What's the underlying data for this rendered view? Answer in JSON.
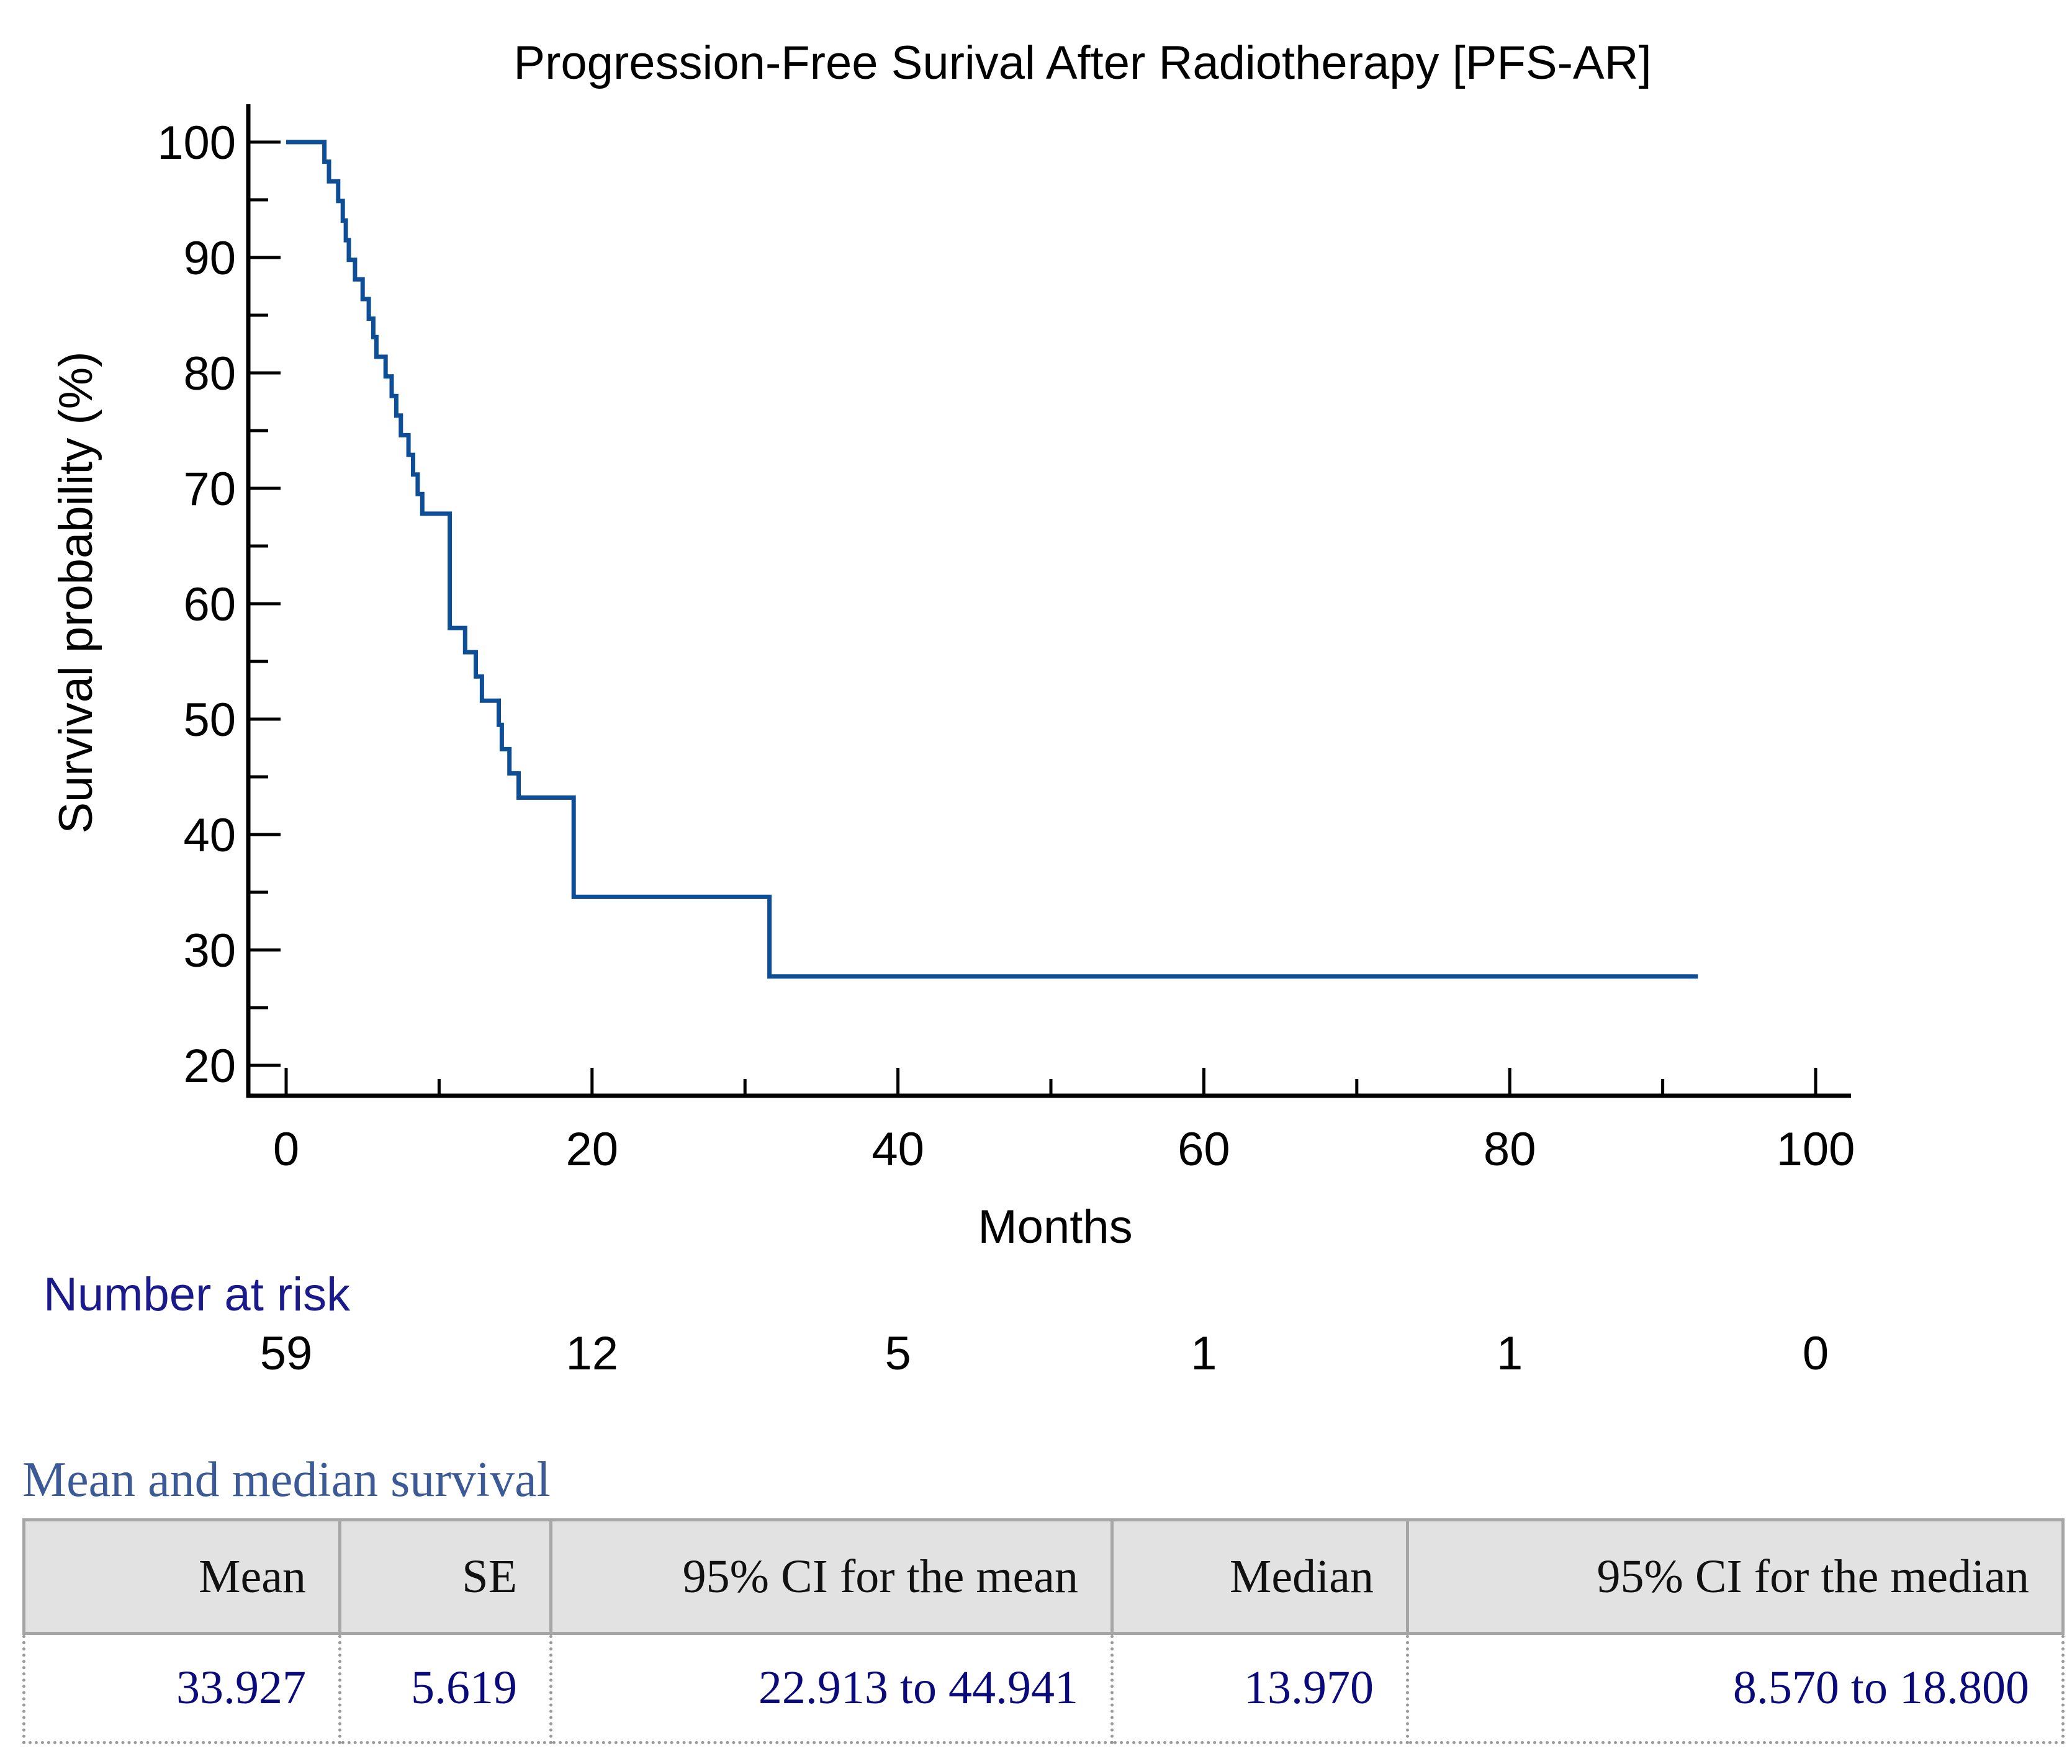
{
  "chart_data": {
    "type": "line",
    "title": "Progression-Free Surival After Radiotherapy [PFS-AR]",
    "xlabel": "Months",
    "ylabel": "Survival probability (%)",
    "xlim": [
      0,
      100
    ],
    "ylim": [
      20,
      100
    ],
    "x_ticks": [
      0,
      20,
      40,
      60,
      80,
      100
    ],
    "x_tick_labels": [
      "0",
      "20",
      "40",
      "60",
      "80",
      "100"
    ],
    "y_ticks": [
      20,
      30,
      40,
      50,
      60,
      70,
      80,
      90,
      100
    ],
    "y_tick_labels": [
      "20",
      "30",
      "40",
      "50",
      "60",
      "70",
      "80",
      "90",
      "100"
    ],
    "series": [
      {
        "name": "PFS-AR",
        "color": "#0d4e96",
        "step": true,
        "x": [
          0,
          2.5,
          2.8,
          3.4,
          3.7,
          3.9,
          4.1,
          4.5,
          5.0,
          5.4,
          5.7,
          5.9,
          6.5,
          6.9,
          7.2,
          7.5,
          8.0,
          8.3,
          8.6,
          8.9,
          10.7,
          11.7,
          12.4,
          12.8,
          13.9,
          14.1,
          14.6,
          15.2,
          18.8,
          31.6,
          92.3
        ],
        "y": [
          100,
          98.3,
          96.6,
          94.9,
          93.2,
          91.5,
          89.8,
          88.1,
          86.4,
          84.7,
          83.1,
          81.4,
          79.7,
          78.0,
          76.3,
          74.6,
          72.9,
          71.2,
          69.5,
          67.8,
          57.9,
          55.8,
          53.7,
          51.6,
          49.5,
          47.4,
          45.3,
          43.2,
          34.6,
          27.7,
          27.7
        ]
      }
    ],
    "number_at_risk": {
      "label": "Number at risk",
      "times": [
        0,
        20,
        40,
        60,
        80,
        100
      ],
      "values": [
        "59",
        "12",
        "5",
        "1",
        "1",
        "0"
      ]
    }
  },
  "survival_summary": {
    "title": "Mean and median survival",
    "headers": [
      "Mean",
      "SE",
      "95% CI for the mean",
      "Median",
      "95% CI for the median"
    ],
    "values": [
      "33.927",
      "5.619",
      "22.913 to 44.941",
      "13.970",
      "8.570 to 18.800"
    ]
  }
}
